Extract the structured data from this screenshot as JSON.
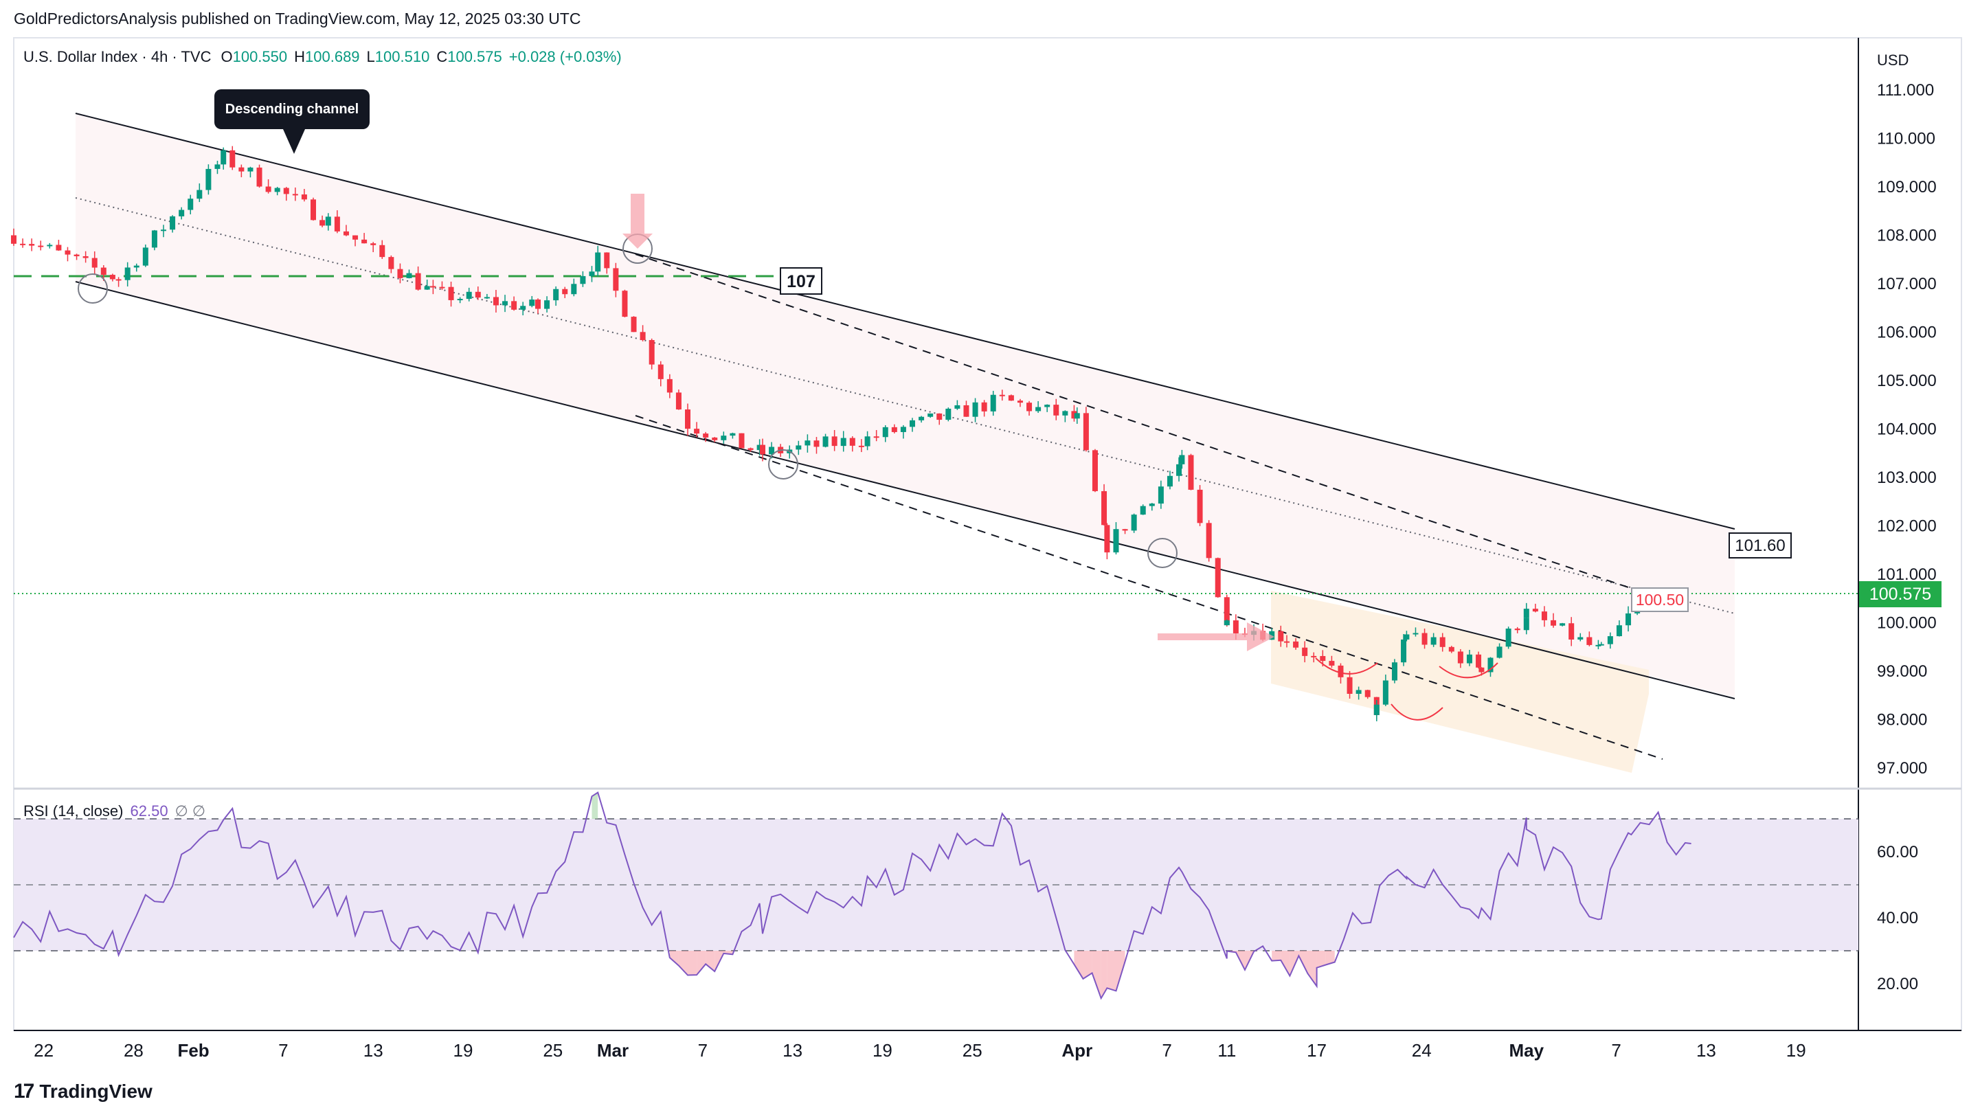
{
  "publisher_line": "GoldPredictorsAnalysis published on TradingView.com, May 12, 2025 03:30 UTC",
  "legend": {
    "symbol": "U.S. Dollar Index · 4h · TVC",
    "open_label": "O",
    "open": "100.550",
    "high_label": "H",
    "high": "100.689",
    "low_label": "L",
    "low": "100.510",
    "close_label": "C",
    "close": "100.575",
    "change": "+0.028 (+0.03%)"
  },
  "currency": "USD",
  "annotations": {
    "callout": "Descending channel",
    "level_107": "107",
    "level_101_60": "101.60",
    "level_100_50": "100.50",
    "last_price": "100.575"
  },
  "rsi_legend": {
    "label": "RSI (14, close)",
    "value": "62.50",
    "extra": "∅ ∅"
  },
  "colors": {
    "up": "#089981",
    "down": "#f23645",
    "rsi_line": "#7e57c2",
    "rsi_band": "#ede7f6",
    "green_dashed": "#2e9e44",
    "last_price_bg": "#22ab4a",
    "pink_arrow": "#f7a4ad",
    "channel_fill": "#fdf5f6",
    "wedge_fill": "#fdf1e2"
  },
  "footer": {
    "logo_mark": "17",
    "logo_text": "TradingView"
  },
  "chart_data": {
    "type": "candlestick",
    "title": "U.S. Dollar Index · 4h · TVC",
    "price_axis": {
      "ticks": [
        "111.000",
        "110.000",
        "109.000",
        "108.000",
        "107.000",
        "106.000",
        "105.000",
        "104.000",
        "103.000",
        "102.000",
        "101.000",
        "100.000",
        "99.000",
        "98.000",
        "97.000"
      ],
      "range": [
        96.7,
        111.8
      ]
    },
    "time_axis": {
      "labels": [
        "22",
        "28",
        "Feb",
        "7",
        "13",
        "19",
        "25",
        "Mar",
        "7",
        "13",
        "19",
        "25",
        "Apr",
        "7",
        "11",
        "17",
        "24",
        "May",
        "7",
        "13",
        "19"
      ]
    },
    "key_points": [
      {
        "t": "Jan 20",
        "close": 108.0
      },
      {
        "t": "Jan 27",
        "close": 107.1
      },
      {
        "t": "Feb 3",
        "close": 109.6
      },
      {
        "t": "Feb 10",
        "close": 108.3
      },
      {
        "t": "Feb 17",
        "close": 106.8
      },
      {
        "t": "Feb 24",
        "close": 106.5
      },
      {
        "t": "Feb 28",
        "close": 107.5
      },
      {
        "t": "Mar 6",
        "close": 104.1
      },
      {
        "t": "Mar 11",
        "close": 103.5
      },
      {
        "t": "Mar 18",
        "close": 103.8
      },
      {
        "t": "Mar 27",
        "close": 104.6
      },
      {
        "t": "Apr 1",
        "close": 104.2
      },
      {
        "t": "Apr 3",
        "close": 101.6
      },
      {
        "t": "Apr 8",
        "close": 103.3
      },
      {
        "t": "Apr 11",
        "close": 100.0
      },
      {
        "t": "Apr 15",
        "close": 99.7
      },
      {
        "t": "Apr 21",
        "close": 98.2
      },
      {
        "t": "Apr 23",
        "close": 99.8
      },
      {
        "t": "Apr 28",
        "close": 99.1
      },
      {
        "t": "May 1",
        "close": 100.2
      },
      {
        "t": "May 6",
        "close": 99.4
      },
      {
        "t": "May 9",
        "close": 100.6
      }
    ],
    "last": {
      "open": 100.55,
      "high": 100.689,
      "low": 100.51,
      "close": 100.575
    },
    "levels": [
      107,
      101.6,
      100.5
    ],
    "rsi": {
      "ticks": [
        "60.00",
        "40.00",
        "20.00"
      ],
      "bands": [
        30,
        50,
        70
      ],
      "range": [
        12,
        80
      ],
      "last": 62.5,
      "key_points": [
        {
          "t": "Jan 20",
          "v": 40
        },
        {
          "t": "Jan 27",
          "v": 33
        },
        {
          "t": "Feb 3",
          "v": 72
        },
        {
          "t": "Feb 10",
          "v": 44
        },
        {
          "t": "Feb 17",
          "v": 30
        },
        {
          "t": "Feb 24",
          "v": 42
        },
        {
          "t": "Feb 28",
          "v": 75
        },
        {
          "t": "Mar 6",
          "v": 22
        },
        {
          "t": "Mar 11",
          "v": 40
        },
        {
          "t": "Mar 18",
          "v": 47
        },
        {
          "t": "Mar 27",
          "v": 68
        },
        {
          "t": "Apr 3",
          "v": 15
        },
        {
          "t": "Apr 8",
          "v": 57
        },
        {
          "t": "Apr 11",
          "v": 30
        },
        {
          "t": "Apr 17",
          "v": 24
        },
        {
          "t": "Apr 23",
          "v": 55
        },
        {
          "t": "Apr 28",
          "v": 40
        },
        {
          "t": "May 1",
          "v": 67
        },
        {
          "t": "May 6",
          "v": 40
        },
        {
          "t": "May 8",
          "v": 69
        },
        {
          "t": "May 12",
          "v": 62.5
        }
      ]
    }
  }
}
